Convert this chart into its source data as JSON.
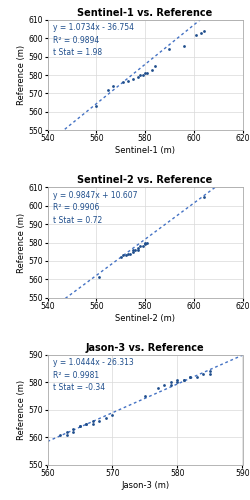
{
  "plots": [
    {
      "title": "Sentinel-1 vs. Reference",
      "xlabel": "Sentinel-1 (m)",
      "ylabel": "Reference (m)",
      "equation": "y = 1.0734x - 36.754",
      "r2": "R² = 0.9894",
      "tstat": "t Stat = 1.98",
      "slope": 1.0734,
      "intercept": -36.754,
      "xlim": [
        540,
        620
      ],
      "ylim": [
        550,
        610
      ],
      "xticks": [
        540,
        560,
        580,
        600,
        620
      ],
      "yticks": [
        550,
        560,
        570,
        580,
        590,
        600,
        610
      ],
      "scatter_x": [
        560,
        565,
        567,
        571,
        573,
        575,
        577,
        578,
        579,
        580,
        581,
        583,
        584,
        590,
        596,
        601,
        603,
        604
      ],
      "scatter_y": [
        563,
        572,
        574,
        576,
        577,
        578,
        579,
        580,
        580,
        581,
        581,
        583,
        585,
        594,
        596,
        602,
        603,
        604
      ]
    },
    {
      "title": "Sentinel-2 vs. Reference",
      "xlabel": "Sentinel-2 (m)",
      "ylabel": "Reference (m)",
      "equation": "y = 0.9847x + 10.607",
      "r2": "R² = 0.9906",
      "tstat": "t Stat = 0.72",
      "slope": 0.9847,
      "intercept": 10.607,
      "xlim": [
        540,
        620
      ],
      "ylim": [
        550,
        610
      ],
      "xticks": [
        540,
        560,
        580,
        600,
        620
      ],
      "yticks": [
        550,
        560,
        570,
        580,
        590,
        600,
        610
      ],
      "scatter_x": [
        561,
        570,
        571,
        572,
        573,
        574,
        575,
        575,
        576,
        577,
        577,
        578,
        579,
        580,
        580,
        581,
        604
      ],
      "scatter_y": [
        561,
        572,
        573,
        573,
        574,
        574,
        575,
        576,
        576,
        576,
        577,
        578,
        578,
        579,
        580,
        580,
        605
      ]
    },
    {
      "title": "Jason-3 vs. Reference",
      "xlabel": "Jason-3 (m)",
      "ylabel": "Reference (m)",
      "equation": "y = 1.0444x - 26.313",
      "r2": "R² = 0.9981",
      "tstat": "t Stat = -0.34",
      "slope": 1.0444,
      "intercept": -26.313,
      "xlim": [
        560,
        590
      ],
      "ylim": [
        550,
        590
      ],
      "xticks": [
        560,
        570,
        580,
        590
      ],
      "yticks": [
        550,
        560,
        570,
        580,
        590
      ],
      "scatter_x": [
        562,
        563,
        563,
        564,
        564,
        565,
        565,
        566,
        566,
        567,
        567,
        568,
        569,
        570,
        575,
        577,
        578,
        579,
        579,
        580,
        580,
        581,
        581,
        582,
        582,
        583,
        584,
        585,
        585
      ],
      "scatter_y": [
        561,
        561,
        562,
        562,
        563,
        564,
        564,
        565,
        565,
        565,
        566,
        566,
        567,
        568,
        575,
        578,
        579,
        579,
        580,
        580,
        581,
        581,
        581,
        582,
        582,
        582,
        583,
        583,
        584
      ]
    }
  ],
  "dot_color": "#1F4E8C",
  "line_color": "#4472C4",
  "bg_color": "#FFFFFF",
  "panel_bg": "#FFFFFF",
  "grid_color": "#D9D9D9",
  "spine_color": "#AAAAAA",
  "title_fontsize": 7.0,
  "label_fontsize": 6.0,
  "tick_fontsize": 5.5,
  "annot_fontsize": 5.5
}
